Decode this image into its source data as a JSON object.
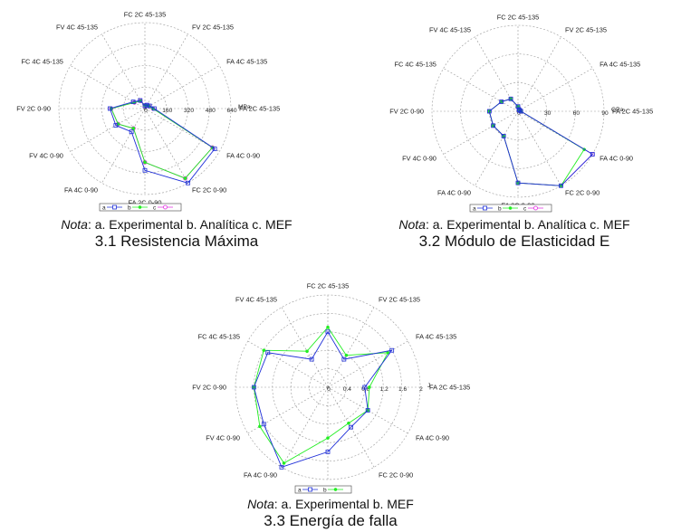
{
  "axis_labels": [
    "FC 2C 45-135",
    "FV 2C 45-135",
    "FA 4C 45-135",
    "FA 2C 45-135",
    "FA 4C 0-90",
    "FC 2C 0-90",
    "FA 2C 0-90",
    "FA 4C 0-90",
    "FV 4C 0-90",
    "FV 2C 0-90",
    "FC 4C 45-135",
    "FV 4C 45-135"
  ],
  "colors": {
    "a": "#1f2fd8",
    "b": "#22ee22",
    "c": "#e030e0",
    "grid": "#999999"
  },
  "chart_data": [
    {
      "type": "radar",
      "ylabel": "MPa",
      "ylim": [
        0,
        640
      ],
      "ticks": [
        "0",
        "160",
        "320",
        "480",
        "640"
      ],
      "legend_position": "bottom",
      "series": [
        {
          "name": "a",
          "values": [
            20,
            30,
            40,
            70,
            600,
            640,
            460,
            200,
            250,
            260,
            100,
            70
          ]
        },
        {
          "name": "b",
          "values": [
            25,
            25,
            35,
            60,
            580,
            600,
            400,
            170,
            230,
            250,
            90,
            65
          ]
        },
        {
          "name": "c",
          "values": [
            25,
            30,
            35,
            60,
            580,
            600,
            400,
            170,
            230,
            250,
            90,
            65
          ]
        }
      ]
    },
    {
      "type": "radar",
      "ylabel": "GPa",
      "ylim": [
        0,
        90
      ],
      "ticks": [
        "0",
        "30",
        "60",
        "90"
      ],
      "legend_position": "bottom",
      "series": [
        {
          "name": "a",
          "values": [
            5,
            2,
            2,
            3,
            90,
            90,
            75,
            30,
            30,
            30,
            20,
            15
          ]
        },
        {
          "name": "b",
          "values": [
            5,
            2,
            2,
            3,
            80,
            90,
            75,
            30,
            30,
            30,
            20,
            15
          ]
        },
        {
          "name": "c",
          "values": [
            5,
            2,
            2,
            3,
            90,
            90,
            75,
            30,
            30,
            30,
            20,
            15
          ]
        }
      ]
    },
    {
      "type": "radar",
      "ylabel": "J",
      "ylim": [
        0,
        2
      ],
      "ticks": [
        "0",
        "0.4",
        "0.8",
        "1.2",
        "1.6",
        "2"
      ],
      "legend_position": "bottom",
      "series": [
        {
          "name": "a",
          "values": [
            1.2,
            0.7,
            1.6,
            0.8,
            1.0,
            1.0,
            1.4,
            2.0,
            1.6,
            1.6,
            1.5,
            0.7
          ]
        },
        {
          "name": "b",
          "values": [
            1.3,
            0.8,
            1.5,
            0.9,
            1.0,
            0.9,
            1.1,
            1.9,
            1.7,
            1.6,
            1.6,
            0.9
          ]
        }
      ]
    }
  ],
  "captions": [
    {
      "note_prefix": "Nota",
      "note_rest": ": a. Experimental b. Analítica c. MEF",
      "title": "3.1 Resistencia Máxima"
    },
    {
      "note_prefix": "Nota",
      "note_rest": ": a. Experimental b. Analítica c. MEF",
      "title": "3.2 Módulo de Elasticidad E"
    },
    {
      "note_prefix": "Nota",
      "note_rest": ": a. Experimental b. MEF",
      "title": "3.3 Energía de falla"
    }
  ]
}
